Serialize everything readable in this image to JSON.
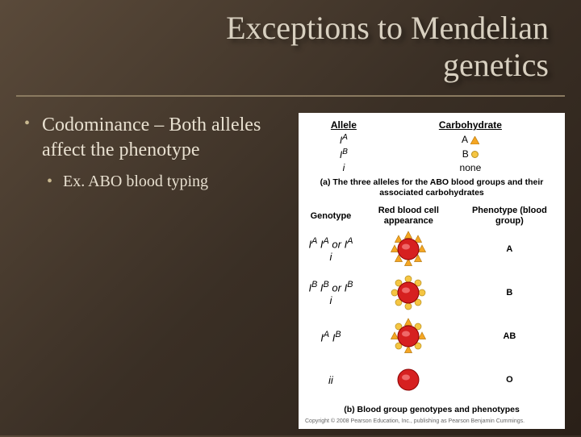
{
  "title_line1": "Exceptions to Mendelian",
  "title_line2": "genetics",
  "bullet_main": "Codominance – Both alleles affect the phenotype",
  "bullet_sub": "Ex. ABO blood typing",
  "panel_a": {
    "headers": [
      "Allele",
      "Carbohydrate"
    ],
    "rows": [
      {
        "allele": "I^A",
        "carb_label": "A",
        "carb_shape": "triangle",
        "carb_color": "#f5a623"
      },
      {
        "allele": "I^B",
        "carb_label": "B",
        "carb_shape": "circle",
        "carb_color": "#f5c542"
      },
      {
        "allele": "i",
        "carb_label": "none",
        "carb_shape": "none",
        "carb_color": ""
      }
    ],
    "caption": "(a) The three alleles for the ABO blood groups and their associated carbohydrates"
  },
  "panel_b": {
    "headers": [
      "Genotype",
      "Red blood cell appearance",
      "Phenotype (blood group)"
    ],
    "rows": [
      {
        "genotype": "I^A I^A or I^A i",
        "antigens": [
          "A"
        ],
        "phenotype": "A"
      },
      {
        "genotype": "I^B I^B or I^B i",
        "antigens": [
          "B"
        ],
        "phenotype": "B"
      },
      {
        "genotype": "I^A I^B",
        "antigens": [
          "A",
          "B"
        ],
        "phenotype": "AB"
      },
      {
        "genotype": "ii",
        "antigens": [],
        "phenotype": "O"
      }
    ],
    "caption": "(b) Blood group genotypes and phenotypes"
  },
  "colors": {
    "rbc_fill": "#d62020",
    "rbc_stroke": "#8a0000",
    "antigen_A_fill": "#f5a623",
    "antigen_A_stroke": "#b87a10",
    "antigen_B_fill": "#f5c542",
    "antigen_B_stroke": "#b89020"
  },
  "copyright": "Copyright © 2008 Pearson Education, Inc., publishing as Pearson Benjamin Cummings."
}
